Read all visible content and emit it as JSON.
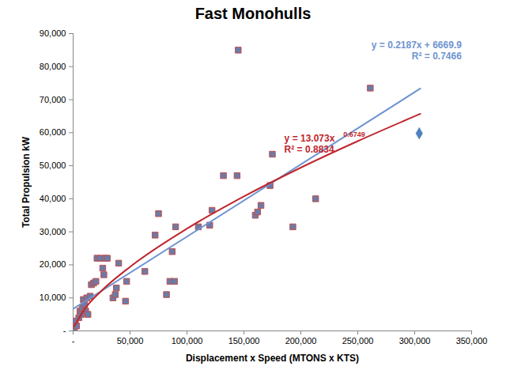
{
  "chart_data": {
    "type": "scatter",
    "title": "Fast Monohulls",
    "x_label": "Displacement x Speed (MTONS x KTS)",
    "y_label": "Total Propulsion kW",
    "xlim": [
      0,
      350000
    ],
    "xticks": [
      {
        "value": 0,
        "label": "-"
      },
      {
        "value": 50000,
        "label": "50,000"
      },
      {
        "value": 100000,
        "label": "100,000"
      },
      {
        "value": 150000,
        "label": "150,000"
      },
      {
        "value": 200000,
        "label": "200,000"
      },
      {
        "value": 250000,
        "label": "250,000"
      },
      {
        "value": 300000,
        "label": "300,000"
      },
      {
        "value": 350000,
        "label": "350,000"
      }
    ],
    "ylim": [
      0,
      90000
    ],
    "yticks": [
      {
        "value": 0,
        "label": "-"
      },
      {
        "value": 10000,
        "label": "10,000"
      },
      {
        "value": 20000,
        "label": "20,000"
      },
      {
        "value": 30000,
        "label": "30,000"
      },
      {
        "value": 40000,
        "label": "40,000"
      },
      {
        "value": 50000,
        "label": "50,000"
      },
      {
        "value": 60000,
        "label": "60,000"
      },
      {
        "value": 70000,
        "label": "70,000"
      },
      {
        "value": 80000,
        "label": "80,000"
      },
      {
        "value": 90000,
        "label": "90,000"
      }
    ],
    "grid": false,
    "series": [
      {
        "type": "scatter",
        "marker": "square",
        "color": "#6c7ba6",
        "x": [
          1000,
          1500,
          2000,
          3000,
          5000,
          6000,
          7000,
          8000,
          9000,
          10000,
          11000,
          12000,
          13000,
          15000,
          16000,
          18000,
          20000,
          21000,
          24000,
          26000,
          27000,
          28000,
          30000,
          35000,
          37000,
          38000,
          40000,
          46000,
          47000,
          63000,
          72000,
          75000,
          82000,
          85000,
          87000,
          89000,
          90000,
          110000,
          120000,
          122000,
          132000,
          144000,
          145000,
          160000,
          162000,
          165000,
          173000,
          175000,
          193000,
          213000,
          261000
        ],
        "values": [
          800,
          2000,
          3000,
          1500,
          4000,
          6000,
          5000,
          7000,
          9500,
          8000,
          6000,
          10000,
          5000,
          10500,
          14000,
          14500,
          15000,
          22000,
          22000,
          19000,
          17000,
          22000,
          22000,
          10000,
          11000,
          13000,
          20500,
          9000,
          15000,
          18000,
          29000,
          35500,
          11000,
          15000,
          24000,
          15000,
          31500,
          31500,
          32000,
          36500,
          47000,
          47000,
          85000,
          35000,
          36000,
          38000,
          44000,
          53500,
          31500,
          40000,
          73500
        ]
      },
      {
        "type": "scatter",
        "marker": "diamond",
        "color": "#4f81bd",
        "x": [
          304000
        ],
        "values": [
          59800
        ]
      },
      {
        "type": "line",
        "line_style": "solid",
        "color": "#6f94cf",
        "x": [
          0,
          305000
        ],
        "values": [
          6670,
          73374
        ]
      },
      {
        "type": "line",
        "line_style": "solid",
        "color": "#c0262d",
        "x": [
          1000,
          10000,
          25000,
          50000,
          100000,
          150000,
          200000,
          250000,
          305000
        ],
        "values": [
          1385,
          6544,
          12152,
          19390,
          30960,
          40710,
          49430,
          57440,
          65720
        ]
      }
    ],
    "annotations": [
      {
        "text": "y = 0.2187x + 6669.9",
        "color": "#6f94cf"
      },
      {
        "text": "R² = 0.7466",
        "color": "#6f94cf"
      },
      {
        "text": "y = 13.073x",
        "superscript": "0.6749",
        "color": "#c0262d"
      },
      {
        "text": "R² = 0.8834",
        "color": "#c0262d"
      }
    ]
  }
}
